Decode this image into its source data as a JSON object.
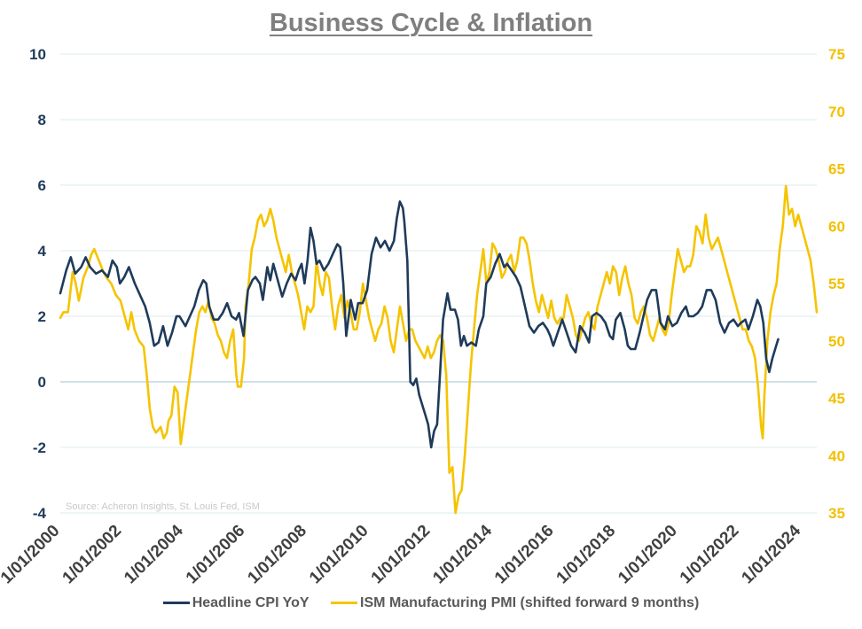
{
  "chart_data": {
    "type": "line",
    "title": "Business Cycle & Inflation",
    "source": "Source: Acheron Insights, St. Louis Fed, ISM",
    "x_ticks": [
      "1/01/2000",
      "1/01/2002",
      "1/01/2004",
      "1/01/2006",
      "1/01/2008",
      "1/01/2010",
      "1/01/2012",
      "1/01/2014",
      "1/01/2016",
      "1/01/2018",
      "1/01/2020",
      "1/01/2022",
      "1/01/2024"
    ],
    "x_range": [
      2000.0,
      2024.5
    ],
    "y_left": {
      "min": -4,
      "max": 10,
      "ticks": [
        "10",
        "8",
        "6",
        "4",
        "2",
        "0",
        "-2",
        "-4"
      ]
    },
    "y_right": {
      "min": 35,
      "max": 75,
      "ticks": [
        "75",
        "70",
        "65",
        "60",
        "55",
        "50",
        "45",
        "40",
        "35"
      ]
    },
    "grid": true,
    "legend_position": "bottom",
    "series": [
      {
        "name": "Headline CPI YoY",
        "axis": "left",
        "color": "#1f3b5a",
        "points": [
          [
            2000.0,
            2.7
          ],
          [
            2000.2,
            3.4
          ],
          [
            2000.35,
            3.8
          ],
          [
            2000.5,
            3.3
          ],
          [
            2000.7,
            3.5
          ],
          [
            2000.85,
            3.8
          ],
          [
            2001.0,
            3.5
          ],
          [
            2001.2,
            3.3
          ],
          [
            2001.4,
            3.4
          ],
          [
            2001.6,
            3.2
          ],
          [
            2001.75,
            3.7
          ],
          [
            2001.9,
            3.5
          ],
          [
            2002.0,
            3.0
          ],
          [
            2002.15,
            3.2
          ],
          [
            2002.3,
            3.5
          ],
          [
            2002.5,
            3.0
          ],
          [
            2002.7,
            2.6
          ],
          [
            2002.85,
            2.3
          ],
          [
            2003.0,
            1.8
          ],
          [
            2003.15,
            1.1
          ],
          [
            2003.3,
            1.2
          ],
          [
            2003.45,
            1.7
          ],
          [
            2003.6,
            1.1
          ],
          [
            2003.75,
            1.5
          ],
          [
            2003.9,
            2.0
          ],
          [
            2004.0,
            2.0
          ],
          [
            2004.2,
            1.7
          ],
          [
            2004.35,
            2.0
          ],
          [
            2004.5,
            2.3
          ],
          [
            2004.65,
            2.8
          ],
          [
            2004.8,
            3.1
          ],
          [
            2004.9,
            3.0
          ],
          [
            2005.0,
            2.3
          ],
          [
            2005.15,
            1.9
          ],
          [
            2005.3,
            1.9
          ],
          [
            2005.45,
            2.1
          ],
          [
            2005.6,
            2.4
          ],
          [
            2005.75,
            2.0
          ],
          [
            2005.9,
            1.9
          ],
          [
            2006.0,
            2.1
          ],
          [
            2006.15,
            1.4
          ],
          [
            2006.3,
            2.8
          ],
          [
            2006.45,
            3.1
          ],
          [
            2006.55,
            3.2
          ],
          [
            2006.7,
            3.0
          ],
          [
            2006.8,
            2.5
          ],
          [
            2006.95,
            3.5
          ],
          [
            2007.05,
            3.1
          ],
          [
            2007.15,
            3.6
          ],
          [
            2007.3,
            3.1
          ],
          [
            2007.45,
            2.6
          ],
          [
            2007.6,
            3.0
          ],
          [
            2007.75,
            3.3
          ],
          [
            2007.9,
            3.1
          ],
          [
            2008.0,
            3.4
          ],
          [
            2008.1,
            3.6
          ],
          [
            2008.2,
            3.0
          ],
          [
            2008.3,
            3.7
          ],
          [
            2008.4,
            4.7
          ],
          [
            2008.5,
            4.3
          ],
          [
            2008.6,
            3.6
          ],
          [
            2008.7,
            3.7
          ],
          [
            2008.85,
            3.4
          ],
          [
            2009.0,
            3.6
          ],
          [
            2009.15,
            3.9
          ],
          [
            2009.3,
            4.2
          ],
          [
            2009.4,
            4.1
          ],
          [
            2009.5,
            3.0
          ],
          [
            2009.6,
            1.4
          ],
          [
            2009.75,
            2.5
          ],
          [
            2009.9,
            1.9
          ],
          [
            2010.0,
            2.4
          ],
          [
            2010.15,
            2.4
          ],
          [
            2010.3,
            2.8
          ],
          [
            2010.45,
            3.9
          ],
          [
            2010.6,
            4.4
          ],
          [
            2010.75,
            4.1
          ],
          [
            2010.9,
            4.3
          ],
          [
            2011.05,
            4.0
          ],
          [
            2011.2,
            4.3
          ],
          [
            2011.3,
            5.0
          ],
          [
            2011.4,
            5.5
          ],
          [
            2011.5,
            5.3
          ],
          [
            2011.55,
            4.9
          ],
          [
            2011.65,
            3.7
          ],
          [
            2011.75,
            0.0
          ],
          [
            2011.85,
            -0.1
          ],
          [
            2011.95,
            0.1
          ],
          [
            2012.05,
            -0.4
          ],
          [
            2012.15,
            -0.7
          ],
          [
            2012.25,
            -1.0
          ],
          [
            2012.35,
            -1.3
          ],
          [
            2012.45,
            -2.0
          ],
          [
            2012.55,
            -1.5
          ],
          [
            2012.65,
            -1.3
          ],
          [
            2012.75,
            0.3
          ],
          [
            2012.85,
            1.9
          ],
          [
            2013.0,
            2.7
          ],
          [
            2013.1,
            2.2
          ],
          [
            2013.25,
            2.2
          ],
          [
            2013.35,
            1.9
          ],
          [
            2013.45,
            1.1
          ],
          [
            2013.55,
            1.4
          ],
          [
            2013.65,
            1.1
          ],
          [
            2013.8,
            1.2
          ],
          [
            2013.95,
            1.1
          ],
          [
            2014.05,
            1.6
          ],
          [
            2014.2,
            2.0
          ],
          [
            2014.3,
            3.0
          ],
          [
            2014.45,
            3.2
          ],
          [
            2014.6,
            3.6
          ],
          [
            2014.75,
            3.9
          ],
          [
            2014.9,
            3.5
          ],
          [
            2015.0,
            3.6
          ],
          [
            2015.15,
            3.4
          ],
          [
            2015.3,
            3.2
          ],
          [
            2015.45,
            2.9
          ],
          [
            2015.6,
            2.3
          ],
          [
            2015.75,
            1.7
          ],
          [
            2015.9,
            1.5
          ],
          [
            2016.05,
            1.7
          ],
          [
            2016.2,
            1.8
          ],
          [
            2016.35,
            1.6
          ],
          [
            2016.45,
            1.4
          ],
          [
            2016.55,
            1.1
          ],
          [
            2016.7,
            1.5
          ],
          [
            2016.85,
            1.9
          ],
          [
            2017.0,
            1.5
          ],
          [
            2017.15,
            1.1
          ],
          [
            2017.3,
            0.9
          ],
          [
            2017.45,
            1.7
          ],
          [
            2017.6,
            1.5
          ],
          [
            2017.75,
            1.2
          ],
          [
            2017.85,
            2.0
          ],
          [
            2018.0,
            2.1
          ],
          [
            2018.15,
            2.0
          ],
          [
            2018.3,
            1.8
          ],
          [
            2018.45,
            1.4
          ],
          [
            2018.55,
            1.3
          ],
          [
            2018.65,
            1.9
          ],
          [
            2018.8,
            2.1
          ],
          [
            2018.95,
            1.6
          ],
          [
            2019.05,
            1.1
          ],
          [
            2019.15,
            1.0
          ],
          [
            2019.3,
            1.0
          ],
          [
            2019.45,
            1.5
          ],
          [
            2019.55,
            1.9
          ],
          [
            2019.7,
            2.5
          ],
          [
            2019.85,
            2.8
          ],
          [
            2020.0,
            2.8
          ],
          [
            2020.05,
            2.5
          ],
          [
            2020.15,
            1.8
          ],
          [
            2020.3,
            1.6
          ],
          [
            2020.4,
            2.0
          ],
          [
            2020.55,
            1.7
          ],
          [
            2020.7,
            1.8
          ],
          [
            2020.85,
            2.1
          ],
          [
            2021.0,
            2.3
          ],
          [
            2021.1,
            2.0
          ],
          [
            2021.25,
            2.0
          ],
          [
            2021.4,
            2.1
          ],
          [
            2021.55,
            2.3
          ],
          [
            2021.7,
            2.8
          ],
          [
            2021.85,
            2.8
          ],
          [
            2022.0,
            2.5
          ],
          [
            2022.15,
            1.8
          ],
          [
            2022.3,
            1.5
          ],
          [
            2022.45,
            1.8
          ],
          [
            2022.6,
            1.9
          ],
          [
            2022.75,
            1.7
          ],
          [
            2022.85,
            1.8
          ],
          [
            2023.0,
            1.9
          ],
          [
            2023.1,
            1.6
          ],
          [
            2023.25,
            2.0
          ],
          [
            2023.4,
            2.5
          ],
          [
            2023.5,
            2.3
          ],
          [
            2023.6,
            1.8
          ],
          [
            2023.7,
            0.7
          ],
          [
            2023.8,
            0.3
          ],
          [
            2023.9,
            0.7
          ],
          [
            2024.0,
            1.0
          ],
          [
            2024.1,
            1.3
          ]
        ]
      },
      {
        "name": "ISM Manufacturing PMI (shifted forward 9 months)",
        "axis": "right",
        "color": "#f5c400",
        "points": []
      }
    ]
  }
}
